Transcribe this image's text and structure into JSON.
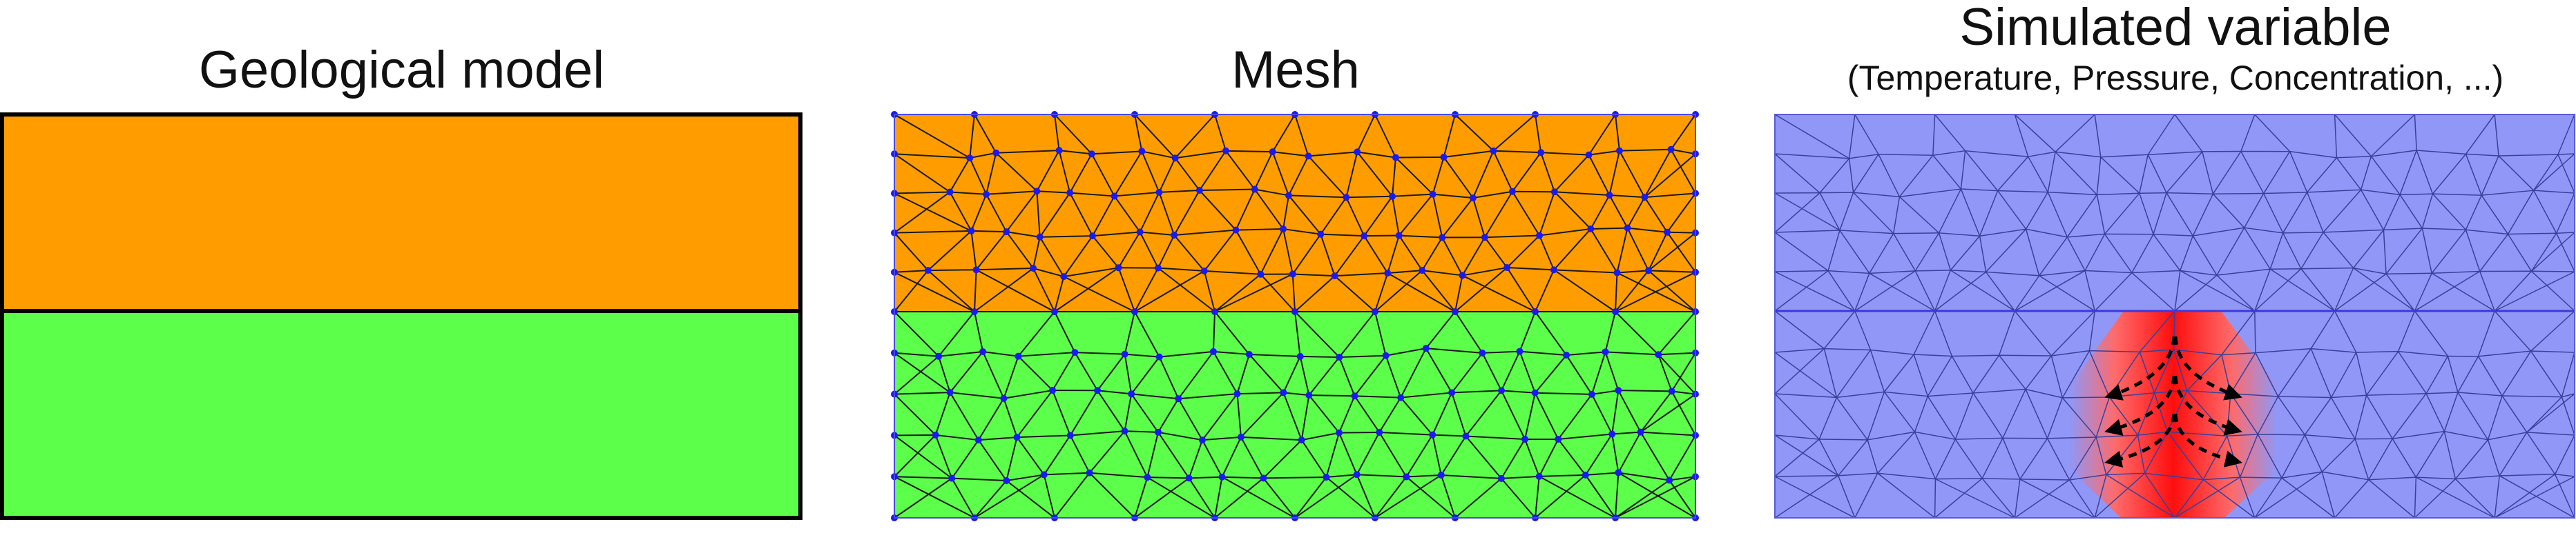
{
  "panels": [
    {
      "title": "Geological model",
      "subtitle": ""
    },
    {
      "title": "Mesh",
      "subtitle": ""
    },
    {
      "title": "Simulated variable",
      "subtitle": "(Temperature, Pressure, Concentration, ...)"
    }
  ],
  "colors": {
    "upper_layer": "#ff9c00",
    "lower_layer": "#5cff4a",
    "simulated_background": "#9097f7",
    "hotspot": "#ff1010",
    "mesh_edge": "#1a1a1a",
    "mesh_node": "#1a1af0",
    "layer_outline": "#000000",
    "arrow": "#000000"
  },
  "icons": {
    "flow_arrows": "dashed-diverging-arrows"
  }
}
